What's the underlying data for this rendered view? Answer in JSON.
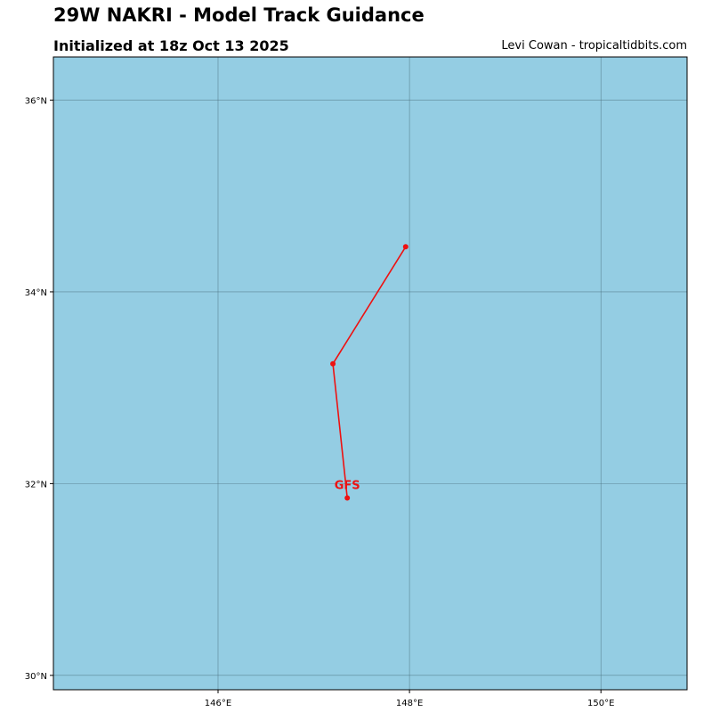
{
  "header": {
    "title": "29W NAKRI - Model Track Guidance",
    "subtitle": "Initialized at 18z Oct 13 2025",
    "credit": "Levi Cowan - tropicaltidbits.com"
  },
  "map": {
    "ocean_color": "#94cde3",
    "grid_color": "#4a6e7c",
    "lon_range": [
      144.28,
      150.9
    ],
    "lat_range": [
      29.85,
      36.45
    ],
    "lon_ticks": [
      {
        "value": 146,
        "label": "146°E"
      },
      {
        "value": 148,
        "label": "148°E"
      },
      {
        "value": 150,
        "label": "150°E"
      }
    ],
    "lat_ticks": [
      {
        "value": 30,
        "label": "30°N"
      },
      {
        "value": 32,
        "label": "32°N"
      },
      {
        "value": 34,
        "label": "34°N"
      },
      {
        "value": 36,
        "label": "36°N"
      }
    ]
  },
  "tracks": [
    {
      "model": "GFS",
      "color": "#ee1111",
      "points": [
        {
          "lon": 147.35,
          "lat": 31.85
        },
        {
          "lon": 147.2,
          "lat": 33.25
        },
        {
          "lon": 147.96,
          "lat": 34.47
        }
      ]
    }
  ]
}
